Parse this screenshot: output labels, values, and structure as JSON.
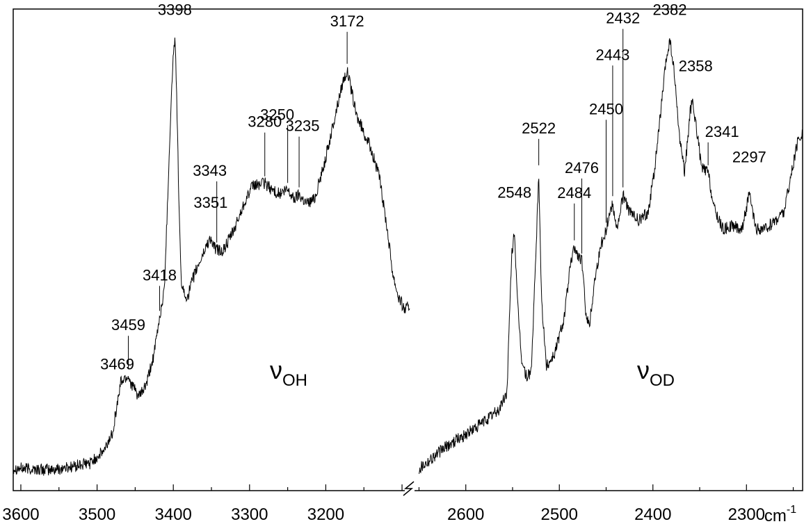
{
  "chart_data": {
    "type": "line",
    "title": "",
    "xlabel": "",
    "ylabel": "",
    "x_unit_label": "cm",
    "x_unit_superscript": "-1",
    "x_axis_break": true,
    "grid": false,
    "panels": [
      {
        "name": "OH",
        "xlim": [
          3610,
          3090
        ],
        "tick_labels": [
          "3600",
          "3500",
          "3400",
          "3300",
          "3200"
        ],
        "band_label": {
          "symbol": "ν",
          "subscript": "OH"
        },
        "peaks": [
          "3469",
          "3459",
          "3418",
          "3398",
          "3351",
          "3343",
          "3280",
          "3250",
          "3235",
          "3172"
        ],
        "points": [
          [
            3610,
            0.02
          ],
          [
            3560,
            0.015
          ],
          [
            3510,
            0.03
          ],
          [
            3490,
            0.06
          ],
          [
            3480,
            0.1
          ],
          [
            3472,
            0.18
          ],
          [
            3469,
            0.215
          ],
          [
            3462,
            0.225
          ],
          [
            3459,
            0.228
          ],
          [
            3455,
            0.21
          ],
          [
            3445,
            0.18
          ],
          [
            3435,
            0.21
          ],
          [
            3425,
            0.28
          ],
          [
            3418,
            0.36
          ],
          [
            3412,
            0.42
          ],
          [
            3408,
            0.6
          ],
          [
            3404,
            0.8
          ],
          [
            3400,
            0.96
          ],
          [
            3398,
            0.99
          ],
          [
            3396,
            0.9
          ],
          [
            3393,
            0.65
          ],
          [
            3390,
            0.45
          ],
          [
            3385,
            0.405
          ],
          [
            3380,
            0.415
          ],
          [
            3372,
            0.46
          ],
          [
            3362,
            0.5
          ],
          [
            3355,
            0.53
          ],
          [
            3351,
            0.54
          ],
          [
            3347,
            0.52
          ],
          [
            3343,
            0.515
          ],
          [
            3335,
            0.51
          ],
          [
            3320,
            0.56
          ],
          [
            3305,
            0.63
          ],
          [
            3295,
            0.66
          ],
          [
            3280,
            0.665
          ],
          [
            3270,
            0.65
          ],
          [
            3260,
            0.64
          ],
          [
            3250,
            0.65
          ],
          [
            3242,
            0.63
          ],
          [
            3235,
            0.64
          ],
          [
            3225,
            0.62
          ],
          [
            3215,
            0.63
          ],
          [
            3205,
            0.69
          ],
          [
            3195,
            0.76
          ],
          [
            3185,
            0.84
          ],
          [
            3177,
            0.9
          ],
          [
            3172,
            0.92
          ],
          [
            3167,
            0.88
          ],
          [
            3160,
            0.82
          ],
          [
            3150,
            0.78
          ],
          [
            3140,
            0.74
          ],
          [
            3130,
            0.68
          ],
          [
            3120,
            0.57
          ],
          [
            3112,
            0.46
          ],
          [
            3105,
            0.41
          ],
          [
            3097,
            0.38
          ],
          [
            3090,
            0.385
          ]
        ]
      },
      {
        "name": "OD",
        "xlim": [
          2660,
          2240
        ],
        "tick_labels": [
          "2600",
          "2500",
          "2400",
          "2300"
        ],
        "band_label": {
          "symbol": "ν",
          "subscript": "OD"
        },
        "peaks": [
          "2548",
          "2522",
          "2484",
          "2476",
          "2450",
          "2443",
          "2432",
          "2382",
          "2358",
          "2341",
          "2297"
        ],
        "points": [
          [
            2650,
            0.02
          ],
          [
            2620,
            0.07
          ],
          [
            2590,
            0.11
          ],
          [
            2565,
            0.15
          ],
          [
            2556,
            0.19
          ],
          [
            2551,
            0.5
          ],
          [
            2548,
            0.56
          ],
          [
            2545,
            0.4
          ],
          [
            2540,
            0.26
          ],
          [
            2535,
            0.225
          ],
          [
            2530,
            0.24
          ],
          [
            2526,
            0.45
          ],
          [
            2522,
            0.69
          ],
          [
            2519,
            0.4
          ],
          [
            2514,
            0.25
          ],
          [
            2505,
            0.28
          ],
          [
            2495,
            0.36
          ],
          [
            2488,
            0.48
          ],
          [
            2484,
            0.52
          ],
          [
            2480,
            0.5
          ],
          [
            2476,
            0.49
          ],
          [
            2472,
            0.38
          ],
          [
            2468,
            0.34
          ],
          [
            2462,
            0.45
          ],
          [
            2456,
            0.52
          ],
          [
            2450,
            0.56
          ],
          [
            2446,
            0.6
          ],
          [
            2443,
            0.62
          ],
          [
            2438,
            0.56
          ],
          [
            2432,
            0.64
          ],
          [
            2425,
            0.6
          ],
          [
            2415,
            0.58
          ],
          [
            2405,
            0.6
          ],
          [
            2398,
            0.7
          ],
          [
            2392,
            0.82
          ],
          [
            2386,
            0.94
          ],
          [
            2382,
            0.99
          ],
          [
            2378,
            0.93
          ],
          [
            2372,
            0.78
          ],
          [
            2366,
            0.69
          ],
          [
            2360,
            0.83
          ],
          [
            2358,
            0.85
          ],
          [
            2354,
            0.8
          ],
          [
            2348,
            0.7
          ],
          [
            2341,
            0.69
          ],
          [
            2335,
            0.61
          ],
          [
            2325,
            0.56
          ],
          [
            2315,
            0.57
          ],
          [
            2305,
            0.56
          ],
          [
            2297,
            0.64
          ],
          [
            2290,
            0.56
          ],
          [
            2280,
            0.56
          ],
          [
            2270,
            0.58
          ],
          [
            2260,
            0.6
          ],
          [
            2245,
            0.76
          ],
          [
            2240,
            0.78
          ]
        ]
      }
    ]
  }
}
